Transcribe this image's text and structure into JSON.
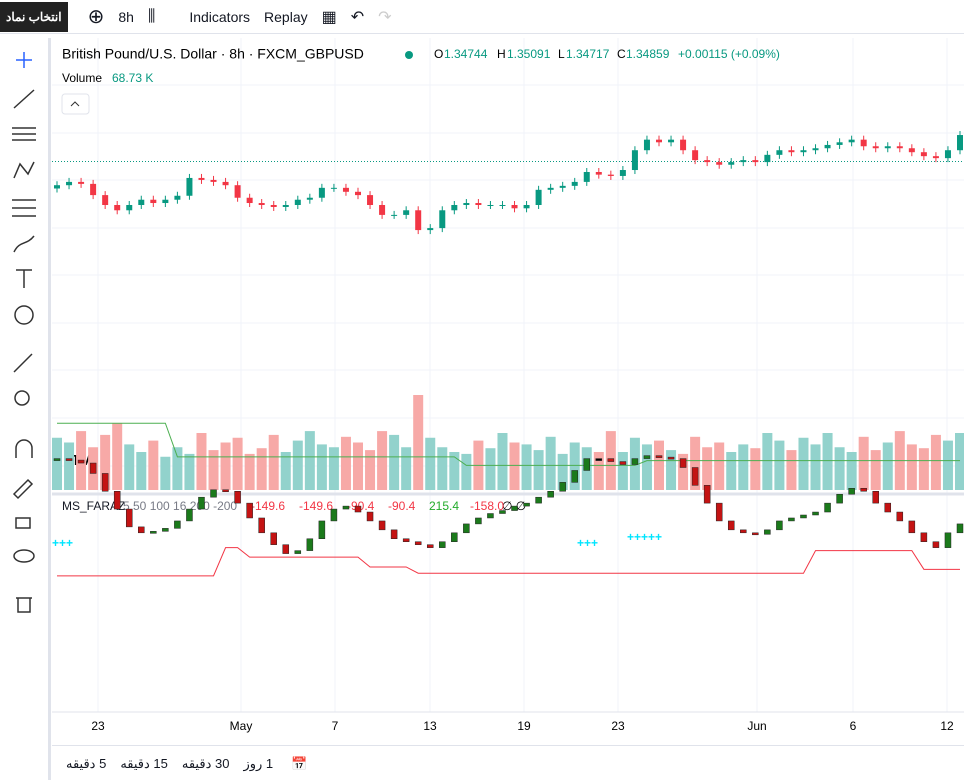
{
  "toolbar": {
    "symbol_button": "انتخاب نماد",
    "interval": "8h",
    "indicators": "Indicators",
    "replay": "Replay"
  },
  "legend": {
    "title": "British Pound/U.S. Dollar · 8h · FXCM_GBPUSD",
    "O_label": "O",
    "O": "1.34744",
    "H_label": "H",
    "H": "1.35091",
    "L_label": "L",
    "L": "1.34717",
    "C_label": "C",
    "C": "1.34859",
    "change": "+0.00115 (+0.09%)",
    "volume_label": "Volume",
    "volume": "68.73 K"
  },
  "indicator": {
    "name": "MS_FARAZ",
    "params": "5 50 100 16 200 -200",
    "values": [
      "-149.6",
      "-149.6",
      "-90.4",
      "-90.4",
      "215.4",
      "-158.0"
    ],
    "empty": "∅ ∅",
    "signals": [
      "+++",
      "+++++"
    ]
  },
  "price_pane": {
    "ylim": [
      1.317,
      1.367
    ],
    "open": 1.3445,
    "closes": [
      1.345,
      1.3455,
      1.3452,
      1.3435,
      1.342,
      1.3412,
      1.342,
      1.3428,
      1.3423,
      1.3428,
      1.3434,
      1.3461,
      1.3458,
      1.3455,
      1.345,
      1.3431,
      1.3423,
      1.342,
      1.3417,
      1.342,
      1.3428,
      1.3431,
      1.3446,
      1.3446,
      1.344,
      1.3435,
      1.342,
      1.3405,
      1.3405,
      1.3412,
      1.3382,
      1.3385,
      1.3412,
      1.342,
      1.3423,
      1.342,
      1.342,
      1.342,
      1.3415,
      1.342,
      1.3443,
      1.3446,
      1.3449,
      1.3455,
      1.347,
      1.3466,
      1.3464,
      1.3473,
      1.3503,
      1.3519,
      1.3515,
      1.3519,
      1.3503,
      1.3488,
      1.3485,
      1.3481,
      1.3485,
      1.3488,
      1.3485,
      1.3496,
      1.3503,
      1.35,
      1.3503,
      1.3506,
      1.3511,
      1.3515,
      1.3519,
      1.3509,
      1.3506,
      1.3509,
      1.3506,
      1.35,
      1.3494,
      1.3491,
      1.3503,
      1.3526
    ]
  },
  "volume_pane": {
    "ylim": [
      0,
      100
    ],
    "values": [
      55,
      50,
      62,
      45,
      58,
      70,
      48,
      40,
      52,
      35,
      45,
      38,
      60,
      42,
      50,
      55,
      38,
      44,
      58,
      40,
      52,
      62,
      48,
      45,
      56,
      50,
      42,
      62,
      58,
      45,
      100,
      55,
      45,
      40,
      38,
      52,
      44,
      60,
      50,
      48,
      42,
      56,
      38,
      50,
      45,
      40,
      62,
      40,
      55,
      48,
      52,
      42,
      38,
      56,
      45,
      50,
      40,
      48,
      44,
      60,
      52,
      42,
      55,
      48,
      60,
      45,
      40,
      56,
      42,
      50,
      62,
      48,
      44,
      58,
      52,
      60
    ]
  },
  "oscillator": {
    "ylim": [
      -320,
      320
    ],
    "values": [
      190,
      185,
      175,
      140,
      80,
      20,
      -40,
      -60,
      -55,
      -45,
      -20,
      20,
      60,
      85,
      80,
      40,
      -10,
      -60,
      -100,
      -130,
      -120,
      -80,
      -20,
      20,
      30,
      10,
      -20,
      -50,
      -80,
      -90,
      -100,
      -110,
      -90,
      -60,
      -30,
      -10,
      5,
      15,
      30,
      40,
      60,
      80,
      110,
      150,
      190,
      190,
      180,
      170,
      190,
      200,
      195,
      190,
      160,
      100,
      40,
      -20,
      -50,
      -60,
      -65,
      -50,
      -20,
      -10,
      0,
      10,
      40,
      70,
      90,
      80,
      40,
      10,
      -20,
      -60,
      -90,
      -110,
      -60,
      -30
    ],
    "upper_band": [
      309,
      309,
      309,
      309,
      309,
      309,
      309,
      309,
      309,
      309,
      196,
      196,
      196,
      196,
      196,
      196,
      196,
      196,
      196,
      196,
      196,
      196,
      196,
      196,
      196,
      196,
      196,
      196,
      196,
      196,
      196,
      196,
      196,
      196,
      167,
      167,
      167,
      167,
      167,
      167,
      167,
      167,
      167,
      167,
      167,
      167,
      167,
      167,
      167,
      183,
      183,
      183,
      183,
      183,
      183,
      183,
      183,
      183,
      183,
      183,
      183,
      183,
      183,
      183,
      183,
      183,
      183,
      183,
      183,
      183,
      183,
      183,
      183,
      183,
      183,
      183
    ],
    "lower_band": [
      -205,
      -205,
      -205,
      -205,
      -205,
      -205,
      -205,
      -205,
      -205,
      -205,
      -205,
      -205,
      -205,
      -205,
      -110,
      -110,
      -142,
      -142,
      -142,
      -142,
      -142,
      -142,
      -142,
      -142,
      -142,
      -142,
      -175,
      -175,
      -175,
      -175,
      -196,
      -196,
      -196,
      -196,
      -196,
      -196,
      -196,
      -196,
      -196,
      -196,
      -196,
      -196,
      -196,
      -196,
      -196,
      -196,
      -196,
      -196,
      -196,
      -196,
      -196,
      -196,
      -196,
      -196,
      -196,
      -196,
      -196,
      -196,
      -196,
      -196,
      -196,
      -196,
      -196,
      -120,
      -120,
      -120,
      -120,
      -120,
      -120,
      -120,
      -120,
      -120,
      -183,
      -183,
      -183,
      -183
    ]
  },
  "time_axis": {
    "labels": [
      "23",
      "May",
      "7",
      "13",
      "19",
      "23",
      "Jun",
      "6",
      "12"
    ]
  },
  "bottom_bar": {
    "ranges": [
      "5 دقیقه",
      "15 دقیقه",
      "30 دقیقه",
      "1 روز"
    ]
  }
}
